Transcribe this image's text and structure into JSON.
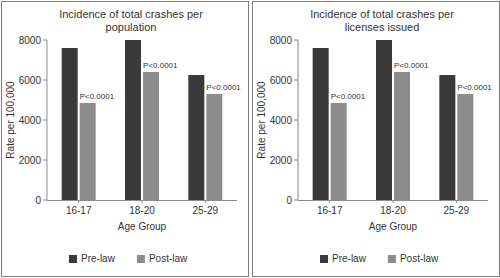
{
  "chart_data": [
    {
      "type": "bar",
      "title": "Incidence of total crashes per population",
      "x_label": "Age Group",
      "y_label": "Rate per 100,000",
      "categories": [
        "16-17",
        "18-20",
        "25-29"
      ],
      "series": [
        {
          "name": "Pre-law",
          "color": "#3a3a3a",
          "values": [
            7600,
            8000,
            6250
          ]
        },
        {
          "name": "Post-law",
          "color": "#8c8c8c",
          "values": [
            4850,
            6400,
            5300
          ]
        }
      ],
      "annotations": [
        "P<0.0001",
        "P<0.0001",
        "P<0.0001"
      ],
      "ylim": [
        0,
        8000
      ],
      "yticks": [
        0,
        2000,
        4000,
        6000,
        8000
      ],
      "grid": false,
      "legend": "bottom"
    },
    {
      "type": "bar",
      "title": "Incidence of total crashes per licenses issued",
      "x_label": "Age Group",
      "y_label": "Rate per 100,000",
      "categories": [
        "16-17",
        "18-20",
        "25-29"
      ],
      "series": [
        {
          "name": "Pre-law",
          "color": "#3a3a3a",
          "values": [
            7600,
            8000,
            6250
          ]
        },
        {
          "name": "Post-law",
          "color": "#8c8c8c",
          "values": [
            4850,
            6400,
            5300
          ]
        }
      ],
      "annotations": [
        "P<0.0001",
        "P<0.0001",
        "P<0.0001"
      ],
      "ylim": [
        0,
        8000
      ],
      "yticks": [
        0,
        2000,
        4000,
        6000,
        8000
      ],
      "grid": false,
      "legend": "bottom"
    }
  ]
}
